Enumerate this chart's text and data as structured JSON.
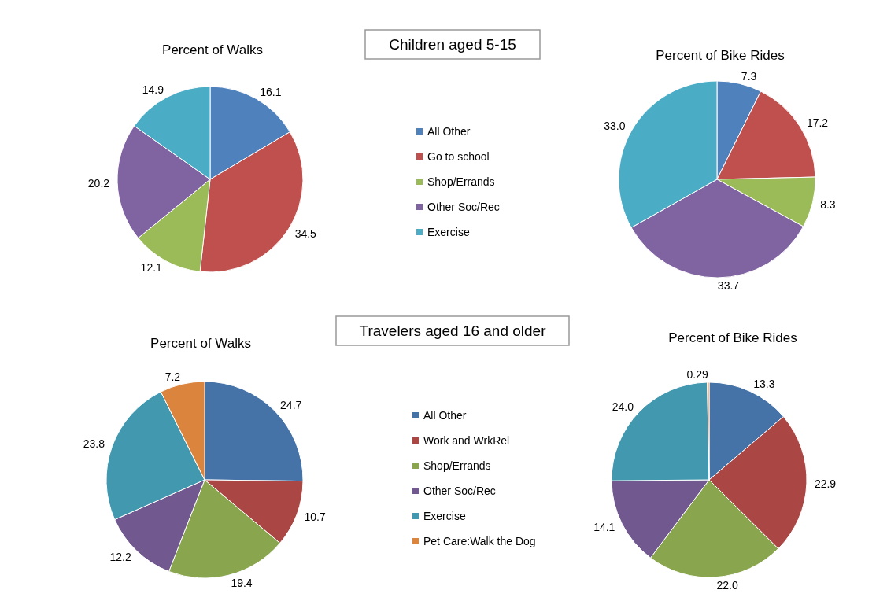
{
  "chart_data": [
    {
      "type": "pie",
      "title": "Percent of Walks",
      "subtitle": "Children aged 5-15",
      "categories": [
        "All Other",
        "Go to school",
        "Shop/Errands",
        "Other Soc/Rec",
        "Exercise"
      ],
      "values": [
        16.1,
        34.5,
        12.1,
        20.2,
        14.9
      ],
      "value_labels": [
        "16.1",
        "34.5",
        "12.1",
        "20.2",
        "14.9"
      ],
      "colors": [
        "#4f81bd",
        "#c0504d",
        "#9bbb59",
        "#8064a2",
        "#4bacc6"
      ],
      "legend": "right"
    },
    {
      "type": "pie",
      "title": "Percent of Bike Rides",
      "categories": [
        null,
        null,
        null,
        null,
        null
      ],
      "values": [
        7.3,
        17.2,
        8.3,
        33.7,
        33.0
      ],
      "value_labels": [
        "7.3",
        "17.2",
        "8.3",
        "33.7",
        "33.0"
      ],
      "colors": [
        "#4f81bd",
        "#c0504d",
        "#9bbb59",
        "#8064a2",
        "#4bacc6"
      ]
    },
    {
      "type": "pie",
      "title": "Percent of Walks",
      "subtitle": "Travelers aged 16 and older",
      "categories": [
        "All Other",
        "Work and WrkRel",
        "Shop/Errands",
        "Other Soc/Rec",
        "Exercise",
        "Pet Care:Walk the Dog"
      ],
      "values": [
        24.7,
        10.7,
        19.4,
        12.2,
        23.8,
        7.2
      ],
      "value_labels": [
        "24.7",
        "10.7",
        "19.4",
        "12.2",
        "23.8",
        "7.2"
      ],
      "colors": [
        "#4572a7",
        "#aa4643",
        "#89a54e",
        "#71588f",
        "#4198af",
        "#db843d"
      ],
      "legend": "right"
    },
    {
      "type": "pie",
      "title": "Percent of Bike Rides",
      "categories": [
        null,
        null,
        null,
        null,
        null,
        null
      ],
      "values": [
        13.3,
        22.9,
        22.0,
        14.1,
        24.0,
        0.29
      ],
      "value_labels": [
        "13.3",
        "22.9",
        "22.0",
        "14.1",
        "24.0",
        "0.29"
      ],
      "colors": [
        "#4572a7",
        "#aa4643",
        "#89a54e",
        "#71588f",
        "#4198af",
        "#db843d"
      ]
    }
  ]
}
